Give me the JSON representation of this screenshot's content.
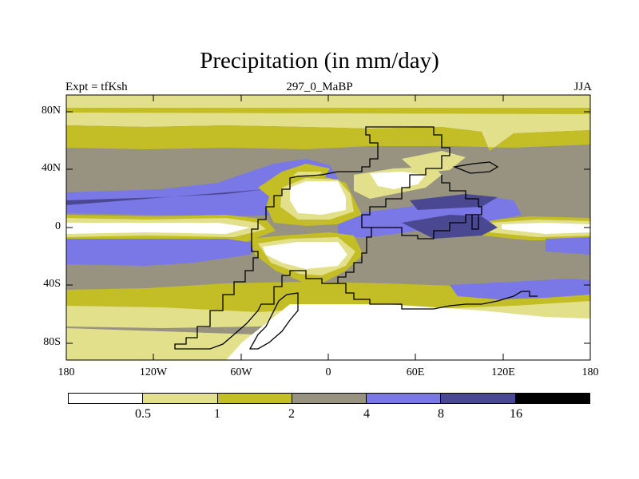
{
  "title": "Precipitation (in mm/day)",
  "subtitle": {
    "left": "Expt = tfKsh",
    "center": "297_0_MaBP",
    "right": "JJA"
  },
  "axes": {
    "y_labels": [
      "80N",
      "40N",
      "0",
      "40S",
      "80S"
    ],
    "x_labels": [
      "180",
      "120W",
      "60W",
      "0",
      "60E",
      "120E",
      "180"
    ]
  },
  "colorbar": {
    "levels": [
      "0.5",
      "1",
      "2",
      "4",
      "8",
      "16"
    ],
    "colors": [
      "#ffffff",
      "#e3e08c",
      "#c3bd26",
      "#979380",
      "#7a77e7",
      "#4a4890",
      "#000000"
    ]
  },
  "colors": {
    "ocean_base": "#979380",
    "land_outline": "#000000"
  }
}
